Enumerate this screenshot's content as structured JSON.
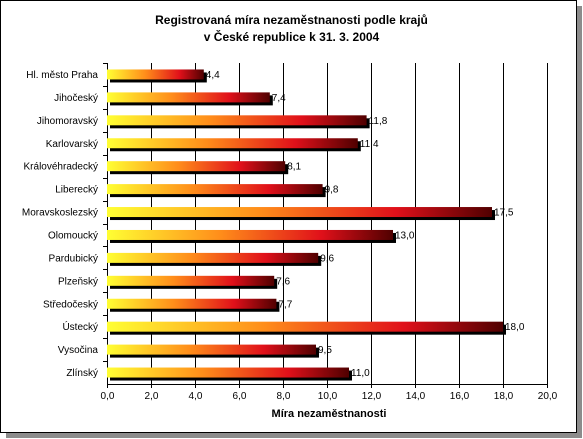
{
  "chart_data": {
    "type": "bar",
    "orientation": "horizontal",
    "title": [
      "Registrovaná míra nezaměstnanosti podle krajů",
      "v České republice k 31. 3. 2004"
    ],
    "xlabel": "Míra nezaměstnanosti",
    "ylabel": "",
    "xlim": [
      0,
      20
    ],
    "x_ticks": [
      "0,0",
      "2,0",
      "4,0",
      "6,0",
      "8,0",
      "10,0",
      "12,0",
      "14,0",
      "16,0",
      "18,0",
      "20,0"
    ],
    "grid": "vertical",
    "legend": "none",
    "categories": [
      "Hl. město Praha",
      "Jihočeský",
      "Jihomoravský",
      "Karlovarský",
      "Královéhradecký",
      "Liberecký",
      "Moravskoslezský",
      "Olomoucký",
      "Pardubický",
      "Plzeňský",
      "Středočeský",
      "Ústecký",
      "Vysočina",
      "Zlínský"
    ],
    "values": [
      4.4,
      7.4,
      11.8,
      11.4,
      8.1,
      9.8,
      17.5,
      13.0,
      9.6,
      7.6,
      7.7,
      18.0,
      9.5,
      11.0
    ],
    "data_labels": [
      "4,4",
      "7,4",
      "11,8",
      "11,4",
      "8,1",
      "9,8",
      "17,5",
      "13,0",
      "9,6",
      "7,6",
      "7,7",
      "18,0",
      "9,5",
      "11,0"
    ],
    "colors": {
      "bar_gradient": [
        "#ffff33",
        "#ff8c1a",
        "#e0101a",
        "#500000"
      ],
      "bar_shadow": "#000000",
      "grid": "#000000",
      "background": "#ffffff"
    }
  }
}
